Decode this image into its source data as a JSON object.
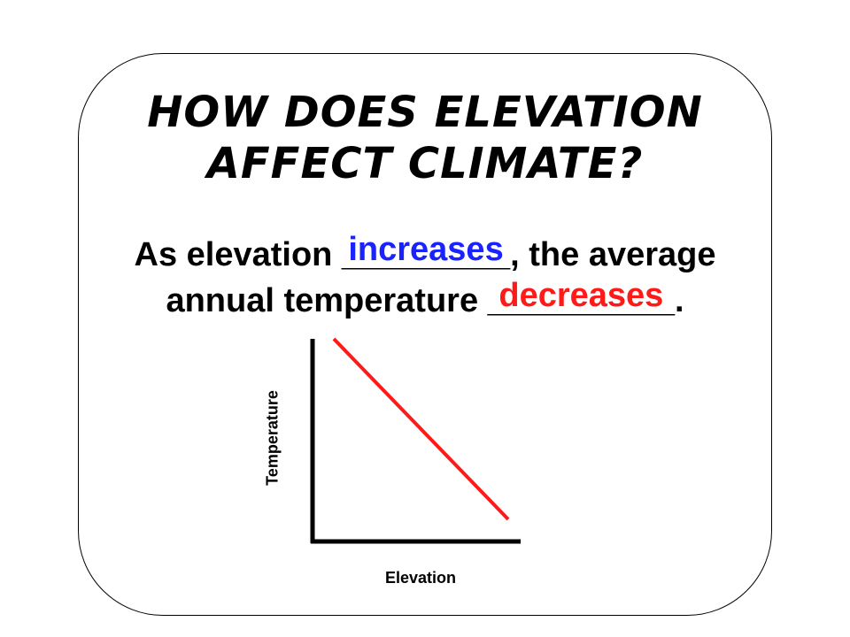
{
  "slide": {
    "title_line1": "How does elevation",
    "title_line2": "affect climate?",
    "sentence": {
      "part1": "As elevation ",
      "blank1": "_________",
      "answer1": "increases",
      "part2": ", the average",
      "part3": "annual temperature ",
      "blank2": "__________",
      "answer2": "decreases",
      "part4": "."
    }
  },
  "colors": {
    "answer1": "#1a22ff",
    "answer2": "#ff1a1a",
    "line": "#ff1a1a",
    "axis": "#000000"
  },
  "chart_data": {
    "type": "line",
    "title": "",
    "xlabel": "Elevation",
    "ylabel": "Temperature",
    "series": [
      {
        "x": [
          0,
          1
        ],
        "y": [
          1,
          0
        ]
      }
    ],
    "xlim": [
      0,
      1
    ],
    "ylim": [
      0,
      1
    ],
    "grid": false,
    "ticks": false
  }
}
